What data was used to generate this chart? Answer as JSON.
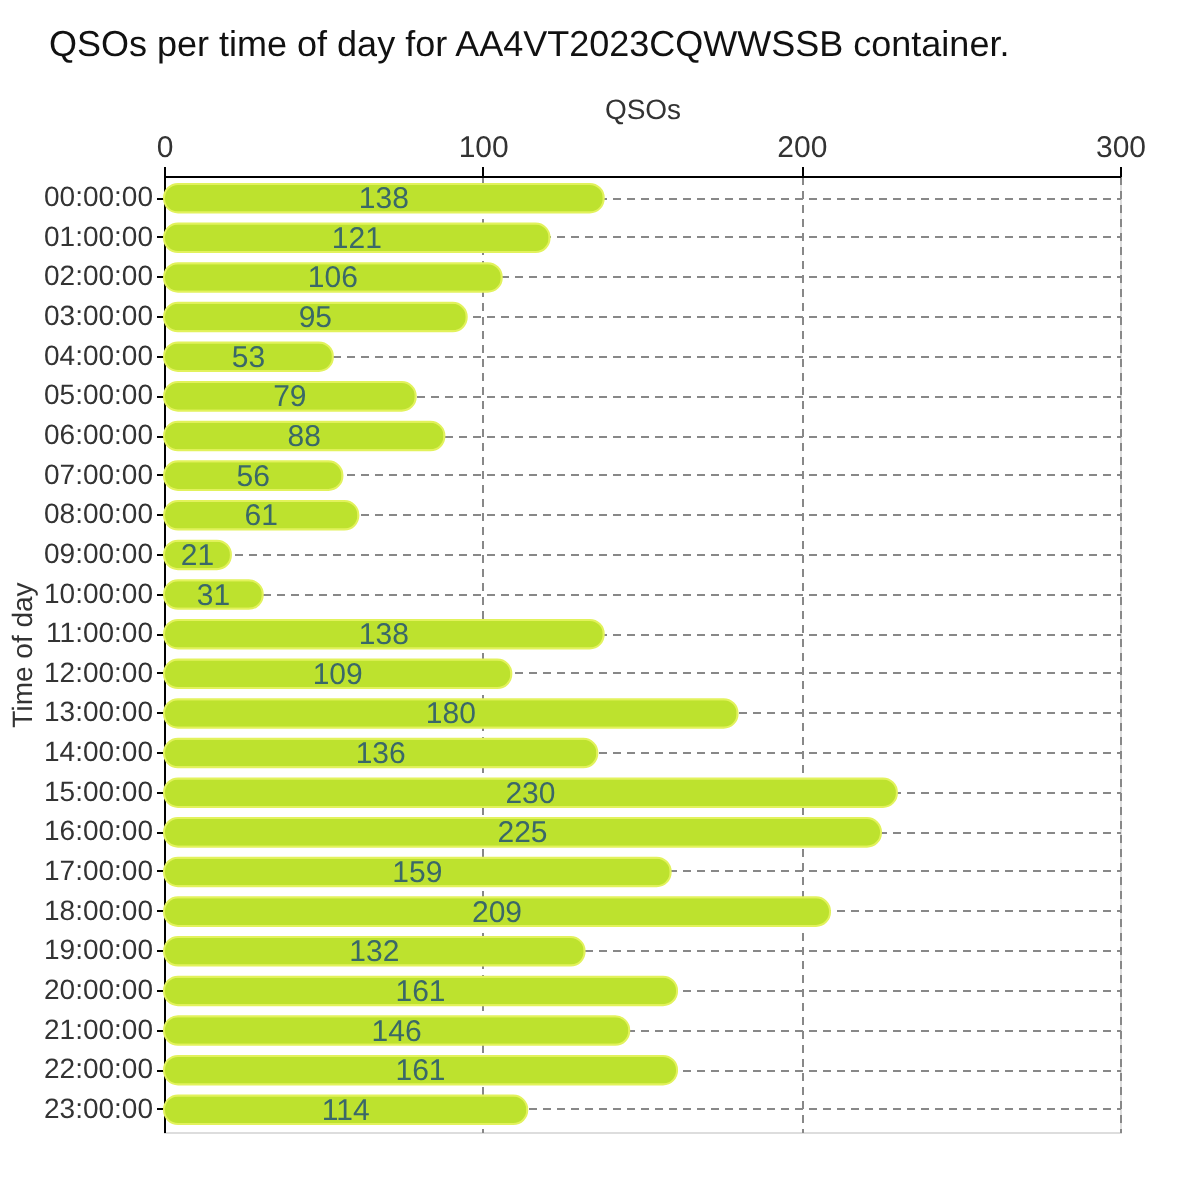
{
  "chart_data": {
    "type": "bar",
    "orientation": "horizontal",
    "title": "QSOs per time of day for AA4VT2023CQWWSSB container.",
    "xlabel": "QSOs",
    "ylabel": "Time of day",
    "categories": [
      "00:00:00",
      "01:00:00",
      "02:00:00",
      "03:00:00",
      "04:00:00",
      "05:00:00",
      "06:00:00",
      "07:00:00",
      "08:00:00",
      "09:00:00",
      "10:00:00",
      "11:00:00",
      "12:00:00",
      "13:00:00",
      "14:00:00",
      "15:00:00",
      "16:00:00",
      "17:00:00",
      "18:00:00",
      "19:00:00",
      "20:00:00",
      "21:00:00",
      "22:00:00",
      "23:00:00"
    ],
    "values": [
      138,
      121,
      106,
      95,
      53,
      79,
      88,
      56,
      61,
      21,
      31,
      138,
      109,
      180,
      136,
      230,
      225,
      159,
      209,
      132,
      161,
      146,
      161,
      114
    ],
    "color": "#bde22e",
    "xlim": [
      0,
      300
    ],
    "xticks": [
      0,
      100,
      200,
      300
    ],
    "grid": true,
    "data_labels": true
  }
}
